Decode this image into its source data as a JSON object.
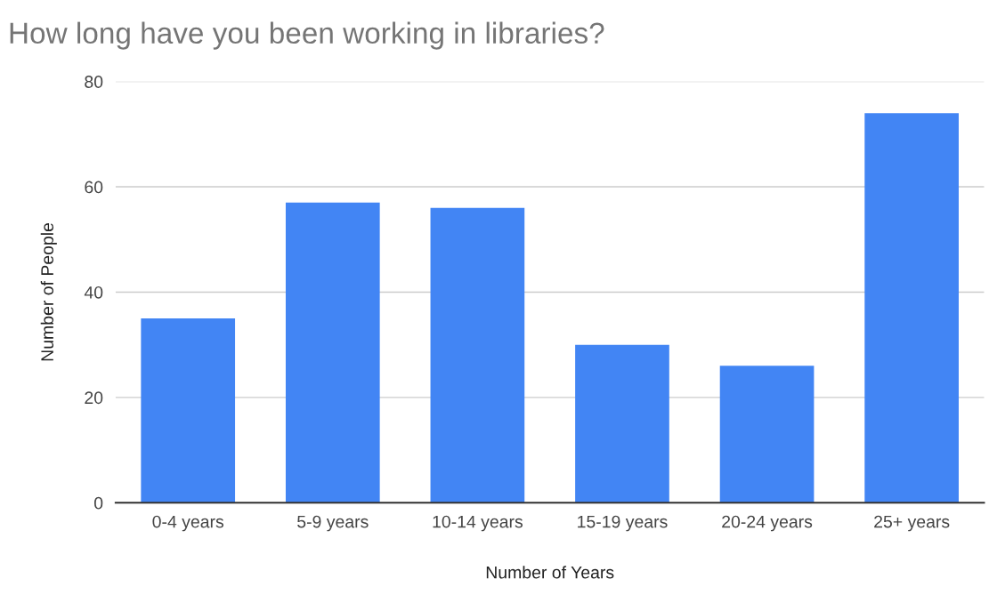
{
  "chart_data": {
    "type": "bar",
    "title": "How long have you been working in libraries?",
    "xlabel": "Number of Years",
    "ylabel": "Number of People",
    "categories": [
      "0-4 years",
      "5-9 years",
      "10-14 years",
      "15-19 years",
      "20-24 years",
      "25+ years"
    ],
    "values": [
      35,
      57,
      56,
      30,
      26,
      74
    ],
    "color": "#4285f4",
    "ylim": [
      0,
      80
    ],
    "yticks": [
      0,
      20,
      40,
      60,
      80
    ],
    "grid": "y",
    "legend": false
  }
}
